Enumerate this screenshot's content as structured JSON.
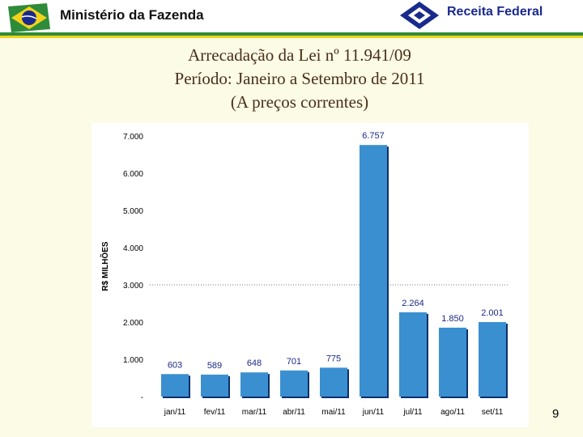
{
  "header": {
    "ministry": "Ministério da Fazenda",
    "agency": "Receita Federal"
  },
  "title": {
    "line1": "Arrecadação da Lei nº 11.941/09",
    "line2": "Período: Janeiro a Setembro de 2011",
    "line3": "(A preços correntes)"
  },
  "page_number": "9",
  "colors": {
    "bar": "#3a8fd0",
    "bar_shadow": "#0c2f6a",
    "label": "#1b2a84",
    "background": "#fbfbe6",
    "header_green": "#2e8b3a",
    "header_yellow": "#f2d21b"
  },
  "chart_data": {
    "type": "bar",
    "ylabel": "R$ MILHÕES",
    "xlabel": "",
    "ylim": [
      0,
      7000
    ],
    "yticks": [
      0,
      1000,
      2000,
      3000,
      4000,
      5000,
      6000,
      7000
    ],
    "ytick_labels": [
      "-",
      "1.000",
      "2.000",
      "3.000",
      "4.000",
      "5.000",
      "6.000",
      "7.000"
    ],
    "grid": "dotted line at 3.000",
    "categories": [
      "jan/11",
      "fev/11",
      "mar/11",
      "abr/11",
      "mai/11",
      "jun/11",
      "jul/11",
      "ago/11",
      "set/11"
    ],
    "values": [
      603,
      589,
      648,
      701,
      775,
      6757,
      2264,
      1850,
      2001
    ],
    "value_labels": [
      "603",
      "589",
      "648",
      "701",
      "775",
      "6.757",
      "2.264",
      "1.850",
      "2.001"
    ]
  }
}
